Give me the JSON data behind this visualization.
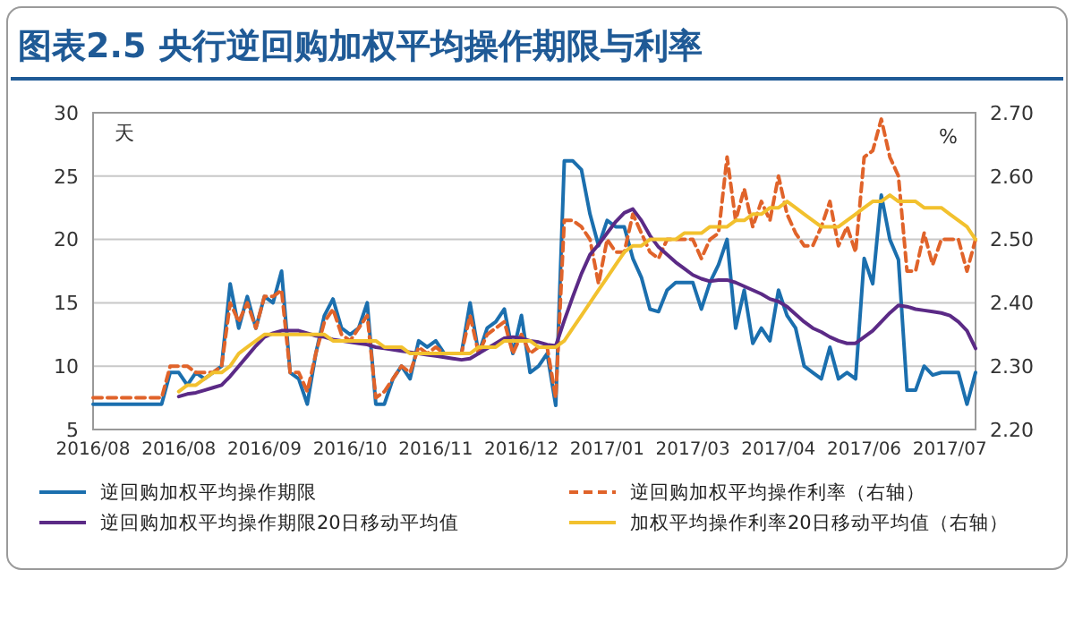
{
  "chart_data": {
    "type": "line",
    "title": "图表2.5 央行逆回购加权平均操作期限与利率",
    "ylabel": "天",
    "y2label": "%",
    "categories": [
      "2016/08",
      null,
      null,
      null,
      null,
      null,
      null,
      null,
      null,
      null,
      "2016/08",
      null,
      null,
      null,
      null,
      null,
      null,
      null,
      null,
      null,
      "2016/09",
      null,
      null,
      null,
      null,
      null,
      null,
      null,
      null,
      null,
      "2016/10",
      null,
      null,
      null,
      null,
      null,
      null,
      null,
      null,
      null,
      "2016/11",
      null,
      null,
      null,
      null,
      null,
      null,
      null,
      null,
      null,
      "2016/12",
      null,
      null,
      null,
      null,
      null,
      null,
      null,
      null,
      null,
      "2017/01",
      null,
      null,
      null,
      null,
      null,
      null,
      null,
      null,
      null,
      "2017/03",
      null,
      null,
      null,
      null,
      null,
      null,
      null,
      null,
      null,
      "2017/04",
      null,
      null,
      null,
      null,
      null,
      null,
      null,
      null,
      null,
      "2017/06",
      null,
      null,
      null,
      null,
      null,
      null,
      null,
      null,
      null,
      "2017/07",
      null,
      null,
      null
    ],
    "ylim": [
      5,
      30
    ],
    "yticks": [
      5,
      10,
      15,
      20,
      25,
      30
    ],
    "y2lim": [
      2.2,
      2.7
    ],
    "y2ticks": [
      {
        "value": 2.2,
        "label": "2.20"
      },
      {
        "value": 2.3,
        "label": "2.30"
      },
      {
        "value": 2.4,
        "label": "2.40"
      },
      {
        "value": 2.5,
        "label": "2.50"
      },
      {
        "value": 2.6,
        "label": "2.60"
      },
      {
        "value": 2.7,
        "label": "2.70"
      }
    ],
    "grid": "y",
    "legend": "bottom",
    "marker": "none",
    "series": [
      {
        "name": "逆回购加权平均操作期限",
        "color": "#1b6fae",
        "line_style": "solid",
        "values": [
          7,
          7,
          7,
          7,
          7,
          7,
          7,
          7,
          7,
          9.5,
          9.5,
          8.5,
          9.5,
          9,
          9.5,
          10,
          16.5,
          13,
          15.5,
          13,
          15.5,
          15,
          17.5,
          9.5,
          9,
          7,
          11,
          14,
          15.3,
          13,
          12.5,
          13,
          15,
          7,
          7,
          9,
          10,
          9,
          12,
          11.5,
          12,
          11,
          11,
          11,
          15,
          11,
          13,
          13.5,
          14.5,
          11,
          14,
          9.5,
          10,
          11,
          6.9,
          26.2,
          26.2,
          25.5,
          22,
          19.5,
          21.5,
          21,
          21,
          18.5,
          17,
          14.5,
          14.3,
          16,
          16.6,
          16.6,
          16.6,
          14.5,
          16.6,
          18,
          20,
          13,
          16,
          11.8,
          13,
          12,
          16,
          14,
          13,
          10,
          9.5,
          9,
          11.5,
          9,
          9.5,
          9,
          18.5,
          16.5,
          23.5,
          20,
          18.4,
          8.1,
          8.1,
          10,
          9.3,
          9.5,
          9.5,
          9.5,
          7,
          9.5
        ]
      },
      {
        "name": "逆回购加权平均操作利率（右轴）",
        "color": "#e0632a",
        "line_style": "dashed",
        "axis": "y2",
        "values": [
          2.25,
          2.25,
          2.25,
          2.25,
          2.25,
          2.25,
          2.25,
          2.25,
          2.25,
          2.3,
          2.3,
          2.3,
          2.29,
          2.29,
          2.29,
          2.3,
          2.4,
          2.37,
          2.4,
          2.36,
          2.41,
          2.41,
          2.42,
          2.29,
          2.29,
          2.26,
          2.32,
          2.37,
          2.39,
          2.35,
          2.34,
          2.36,
          2.38,
          2.25,
          2.26,
          2.28,
          2.3,
          2.29,
          2.33,
          2.32,
          2.33,
          2.32,
          2.32,
          2.32,
          2.38,
          2.32,
          2.35,
          2.36,
          2.37,
          2.32,
          2.35,
          2.32,
          2.33,
          2.33,
          2.25,
          2.53,
          2.53,
          2.52,
          2.5,
          2.43,
          2.5,
          2.48,
          2.48,
          2.54,
          2.51,
          2.48,
          2.47,
          2.5,
          2.5,
          2.5,
          2.5,
          2.47,
          2.5,
          2.51,
          2.63,
          2.53,
          2.58,
          2.52,
          2.56,
          2.53,
          2.6,
          2.54,
          2.51,
          2.49,
          2.49,
          2.52,
          2.56,
          2.49,
          2.52,
          2.48,
          2.63,
          2.64,
          2.69,
          2.63,
          2.6,
          2.45,
          2.45,
          2.51,
          2.46,
          2.5,
          2.5,
          2.5,
          2.45,
          2.5
        ]
      },
      {
        "name": "逆回购加权平均操作期限20日移动平均值",
        "color": "#5b2a86",
        "line_style": "solid",
        "values": [
          null,
          null,
          null,
          null,
          null,
          null,
          null,
          null,
          null,
          null,
          7.6,
          7.8,
          7.9,
          8.1,
          8.3,
          8.5,
          9.2,
          10,
          10.8,
          11.6,
          12.3,
          12.6,
          12.8,
          12.8,
          12.8,
          12.6,
          12.4,
          12.3,
          12.1,
          12,
          11.9,
          11.8,
          11.7,
          11.5,
          11.4,
          11.3,
          11.2,
          11.1,
          11,
          10.9,
          10.8,
          10.7,
          10.6,
          10.5,
          10.6,
          11,
          11.4,
          11.8,
          12.2,
          12.3,
          12.2,
          12,
          11.9,
          11.7,
          11.6,
          13.6,
          15.5,
          17.3,
          18.8,
          19.6,
          20.5,
          21.4,
          22.1,
          22.4,
          21.5,
          20.3,
          19.4,
          18.8,
          18.2,
          17.7,
          17.2,
          16.9,
          16.7,
          16.8,
          16.8,
          16.6,
          16.3,
          16,
          15.7,
          15.3,
          15.1,
          14.7,
          14.1,
          13.5,
          13,
          12.7,
          12.3,
          12,
          11.8,
          11.8,
          12.3,
          12.8,
          13.5,
          14.2,
          14.8,
          14.7,
          14.5,
          14.4,
          14.3,
          14.2,
          14,
          13.5,
          12.8,
          11.4
        ]
      },
      {
        "name": "加权平均操作利率20日移动平均值（右轴）",
        "color": "#f2c12e",
        "line_style": "solid",
        "axis": "y2",
        "values": [
          null,
          null,
          null,
          null,
          null,
          null,
          null,
          null,
          null,
          null,
          2.26,
          2.27,
          2.27,
          2.28,
          2.29,
          2.29,
          2.3,
          2.32,
          2.33,
          2.34,
          2.35,
          2.35,
          2.35,
          2.35,
          2.35,
          2.35,
          2.35,
          2.35,
          2.34,
          2.34,
          2.34,
          2.34,
          2.34,
          2.34,
          2.33,
          2.33,
          2.33,
          2.32,
          2.32,
          2.32,
          2.32,
          2.32,
          2.32,
          2.32,
          2.32,
          2.33,
          2.33,
          2.33,
          2.34,
          2.34,
          2.34,
          2.34,
          2.33,
          2.33,
          2.33,
          2.34,
          2.36,
          2.38,
          2.4,
          2.42,
          2.44,
          2.46,
          2.48,
          2.49,
          2.49,
          2.5,
          2.5,
          2.5,
          2.5,
          2.51,
          2.51,
          2.51,
          2.52,
          2.52,
          2.52,
          2.53,
          2.53,
          2.54,
          2.54,
          2.55,
          2.55,
          2.56,
          2.55,
          2.54,
          2.53,
          2.52,
          2.52,
          2.52,
          2.53,
          2.54,
          2.55,
          2.56,
          2.56,
          2.57,
          2.56,
          2.56,
          2.56,
          2.55,
          2.55,
          2.55,
          2.54,
          2.53,
          2.52,
          2.5
        ]
      }
    ]
  }
}
